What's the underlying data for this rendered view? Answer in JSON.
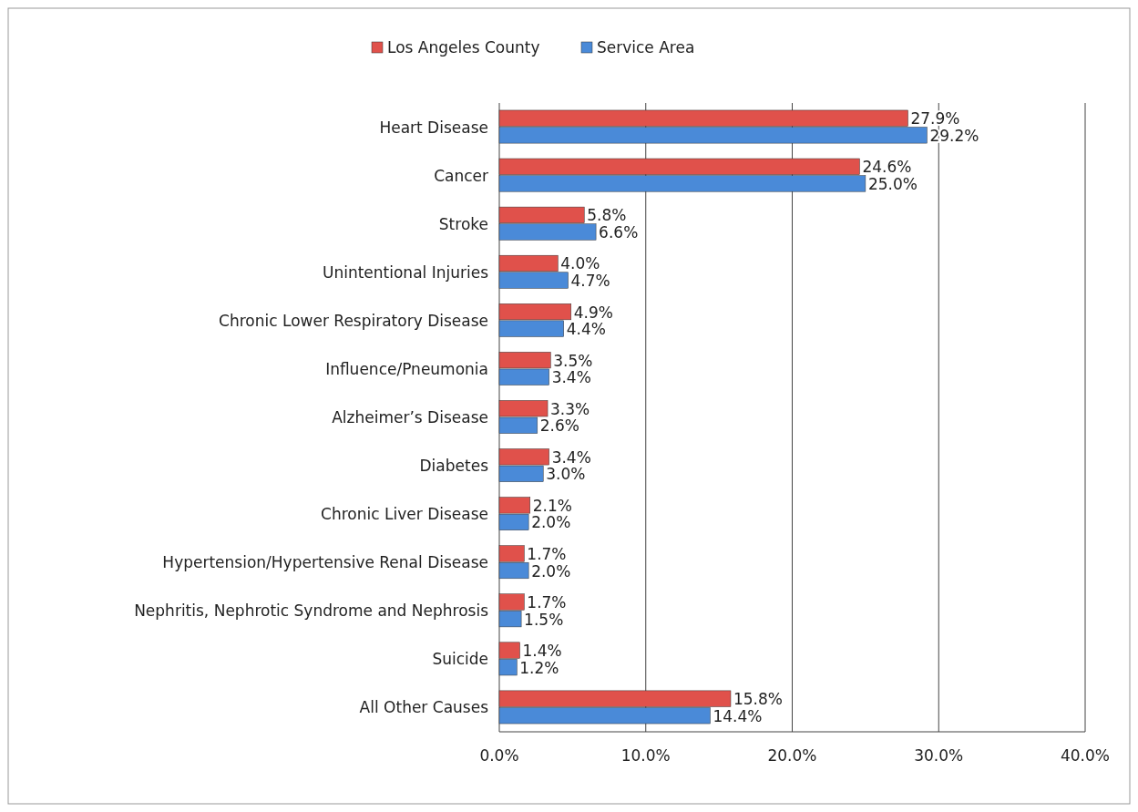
{
  "chart_data": {
    "type": "bar",
    "orientation": "horizontal",
    "legend": "top",
    "grid": "x",
    "categories": [
      "Heart Disease",
      "Cancer",
      "Stroke",
      "Unintentional Injuries",
      "Chronic Lower Respiratory Disease",
      "Influence/Pneumonia",
      "Alzheimer’s Disease",
      "Diabetes",
      "Chronic Liver Disease",
      "Hypertension/Hypertensive Renal Disease",
      "Nephritis, Nephrotic Syndrome and Nephrosis",
      "Suicide",
      "All Other Causes"
    ],
    "series": [
      {
        "name": "Los Angeles County",
        "color": "#e0514b",
        "values": [
          27.9,
          24.6,
          5.8,
          4.0,
          4.9,
          3.5,
          3.3,
          3.4,
          2.1,
          1.7,
          1.7,
          1.4,
          15.8
        ],
        "value_labels": [
          "27.9%",
          "24.6%",
          "5.8%",
          "4.0%",
          "4.9%",
          "3.5%",
          "3.3%",
          "3.4%",
          "2.1%",
          "1.7%",
          "1.7%",
          "1.4%",
          "15.8%"
        ]
      },
      {
        "name": "Service Area",
        "color": "#4a8ad8",
        "values": [
          29.2,
          25.0,
          6.6,
          4.7,
          4.4,
          3.4,
          2.6,
          3.0,
          2.0,
          2.0,
          1.5,
          1.2,
          14.4
        ],
        "value_labels": [
          "29.2%",
          "25.0%",
          "6.6%",
          "4.7%",
          "4.4%",
          "3.4%",
          "2.6%",
          "3.0%",
          "2.0%",
          "2.0%",
          "1.5%",
          "1.2%",
          "14.4%"
        ]
      }
    ],
    "xlim": [
      0,
      40
    ],
    "xticks": [
      {
        "value": 0,
        "label": "0.0%"
      },
      {
        "value": 10,
        "label": "10.0%"
      },
      {
        "value": 20,
        "label": "20.0%"
      },
      {
        "value": 30,
        "label": "30.0%"
      },
      {
        "value": 40,
        "label": "40.0%"
      }
    ]
  }
}
